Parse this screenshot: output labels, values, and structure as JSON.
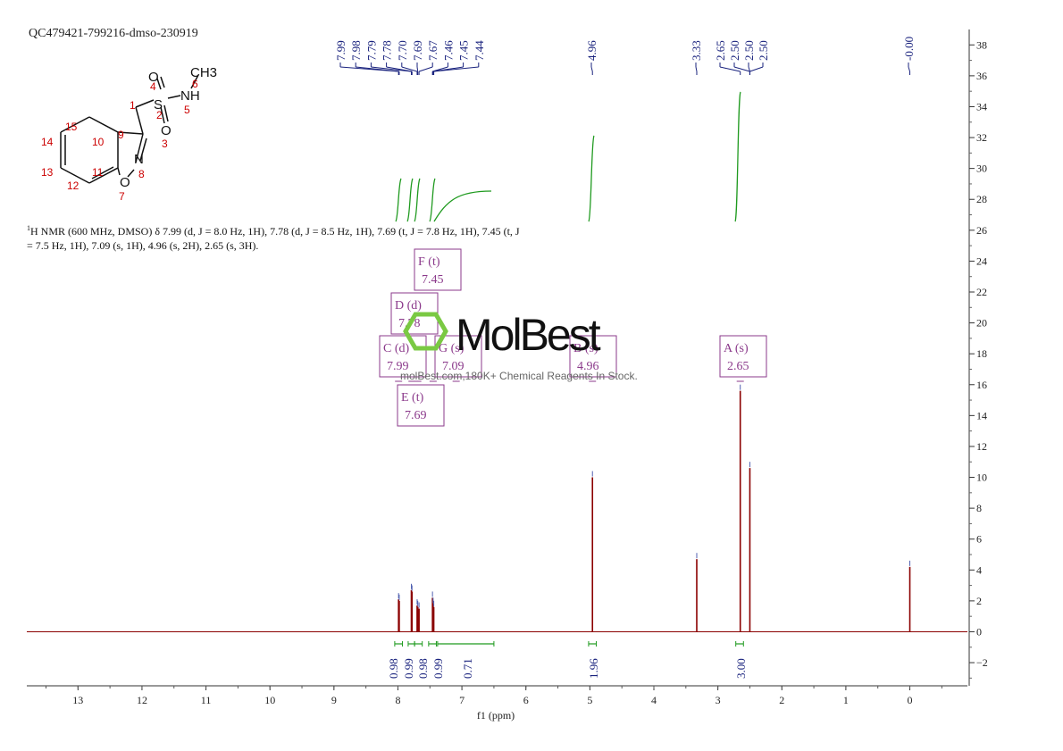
{
  "sample_id": "QC479421-799216-dmso-230919",
  "nmr_description": {
    "prefix_sup": "1",
    "text": "H NMR (600 MHz, DMSO) δ 7.99 (d, J = 8.0 Hz, 1H), 7.78 (d, J = 8.5 Hz, 1H), 7.69 (t, J = 7.8 Hz, 1H), 7.45 (t, J = 7.5 Hz, 1H), 7.09 (s, 1H), 4.96 (s, 2H), 2.65 (s, 3H)."
  },
  "watermark": {
    "logo": "MolBest",
    "text": "molBest.com,180K+ Chemical Reagents In Stock."
  },
  "molecule": {
    "atoms": [
      "CH3",
      "NH",
      "S",
      "O",
      "O",
      "O",
      "N"
    ],
    "numbers": [
      "1",
      "2",
      "3",
      "4",
      "5",
      "6",
      "7",
      "8",
      "9",
      "10",
      "11",
      "12",
      "13",
      "14",
      "15"
    ]
  },
  "colors": {
    "spectrum": "#8b0000",
    "integral": "#1f9a1f",
    "peak_label": "#1a237e",
    "multiplet_box": "#8b3a8b",
    "atom_number": "#cc0000"
  },
  "chart_data": {
    "type": "line",
    "xlabel": "f1 (ppm)",
    "x_ticks": [
      13,
      12,
      11,
      10,
      9,
      8,
      7,
      6,
      5,
      4,
      3,
      2,
      1,
      0
    ],
    "xlim": [
      13.8,
      -0.9
    ],
    "ylim": [
      -3.5,
      39
    ],
    "y_ticks": [
      -2,
      0,
      2,
      4,
      6,
      8,
      10,
      12,
      14,
      16,
      18,
      20,
      22,
      24,
      26,
      28,
      30,
      32,
      34,
      36,
      38
    ],
    "peak_labels": [
      "7.99",
      "7.98",
      "7.79",
      "7.78",
      "7.70",
      "7.69",
      "7.67",
      "7.46",
      "7.45",
      "7.44",
      "4.96",
      "3.33",
      "2.65",
      "2.50",
      "2.50",
      "2.50",
      "-0.00"
    ],
    "peaks": [
      {
        "ppm": 7.99,
        "height": 2.1
      },
      {
        "ppm": 7.98,
        "height": 2.0
      },
      {
        "ppm": 7.79,
        "height": 2.7
      },
      {
        "ppm": 7.78,
        "height": 2.6
      },
      {
        "ppm": 7.7,
        "height": 1.7
      },
      {
        "ppm": 7.69,
        "height": 1.6
      },
      {
        "ppm": 7.67,
        "height": 1.5
      },
      {
        "ppm": 7.46,
        "height": 2.2
      },
      {
        "ppm": 7.45,
        "height": 1.8
      },
      {
        "ppm": 7.44,
        "height": 1.6
      },
      {
        "ppm": 4.96,
        "height": 10.0
      },
      {
        "ppm": 3.33,
        "height": 4.7
      },
      {
        "ppm": 2.65,
        "height": 15.6
      },
      {
        "ppm": 2.5,
        "height": 10.6
      },
      {
        "ppm": 0.0,
        "height": 4.2
      }
    ],
    "integrals": [
      {
        "from": 8.05,
        "to": 7.93,
        "value": "0.98"
      },
      {
        "from": 7.84,
        "to": 7.74,
        "value": "0.99"
      },
      {
        "from": 7.74,
        "to": 7.62,
        "value": "0.98"
      },
      {
        "from": 7.52,
        "to": 7.4,
        "value": "0.99"
      },
      {
        "from": 7.38,
        "to": 6.5,
        "value": "0.71"
      },
      {
        "from": 5.02,
        "to": 4.9,
        "value": "1.96"
      },
      {
        "from": 2.72,
        "to": 2.6,
        "value": "3.00"
      }
    ],
    "multiplets": [
      {
        "name": "A",
        "type": "(s)",
        "shift": "2.65",
        "ppm": 2.65
      },
      {
        "name": "B",
        "type": "(s)",
        "shift": "4.96",
        "ppm": 4.96
      },
      {
        "name": "C",
        "type": "(d)",
        "shift": "7.99",
        "ppm": 7.99
      },
      {
        "name": "D",
        "type": "(d)",
        "shift": "7.78",
        "ppm": 7.78
      },
      {
        "name": "E",
        "type": "(t)",
        "shift": "7.69",
        "ppm": 7.69
      },
      {
        "name": "F",
        "type": "(t)",
        "shift": "7.45",
        "ppm": 7.45
      },
      {
        "name": "G",
        "type": "(s)",
        "shift": "7.09",
        "ppm": 7.09
      }
    ]
  }
}
